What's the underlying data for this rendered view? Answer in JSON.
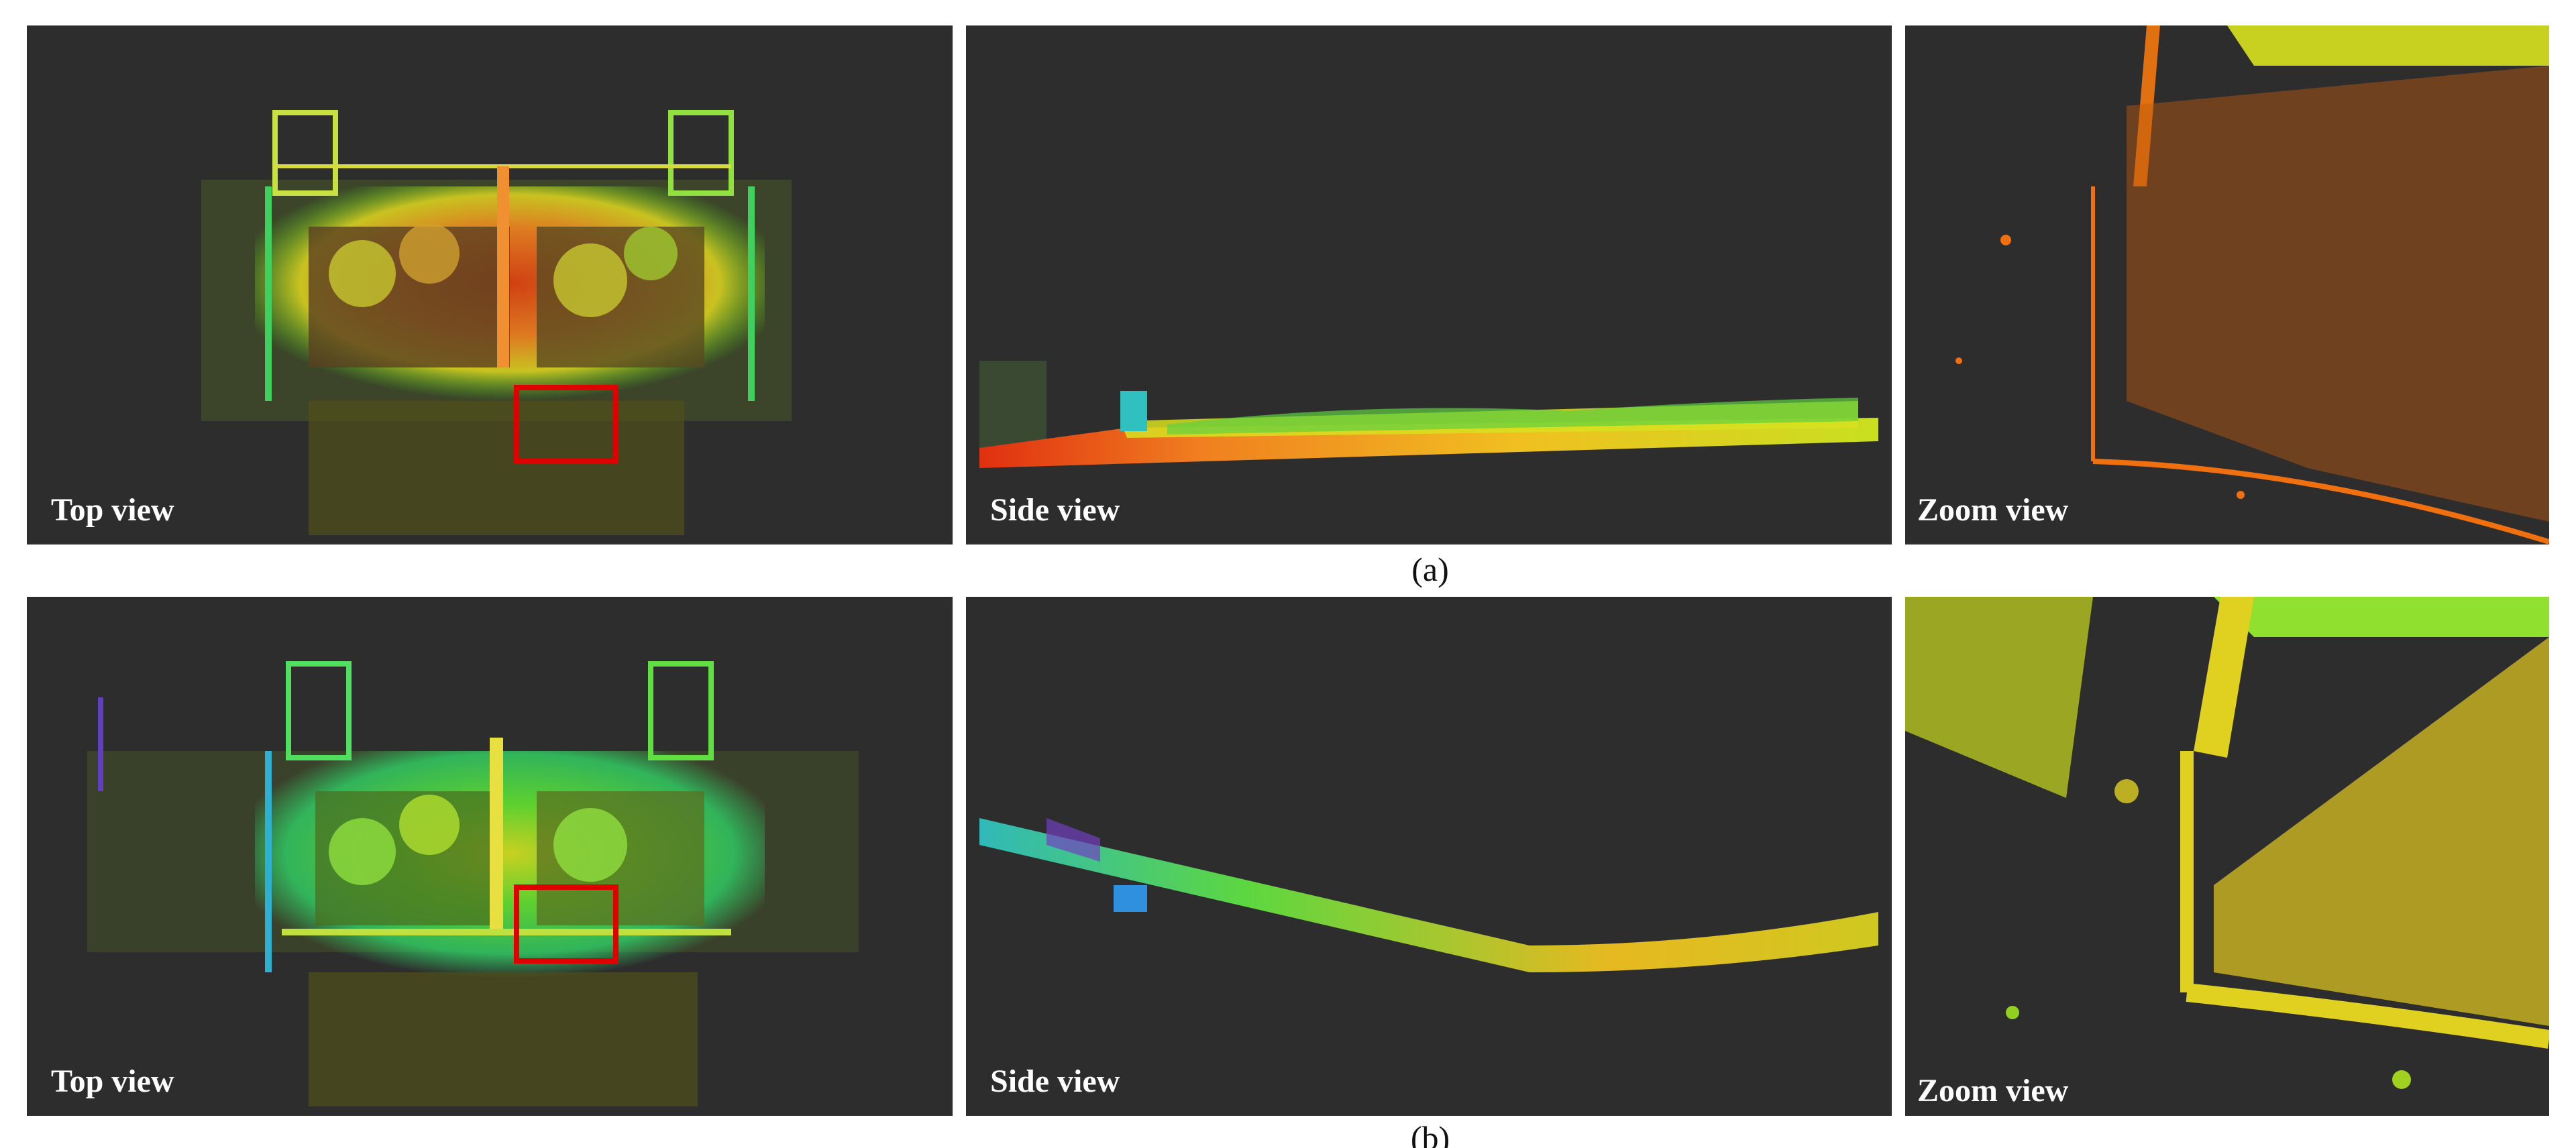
{
  "rows": [
    {
      "caption": "(a)",
      "panels": {
        "top": "Top view",
        "side": "Side view",
        "zoom": "Zoom view"
      }
    },
    {
      "caption": "(b)",
      "panels": {
        "top": "Top view",
        "side": "Side view",
        "zoom": "Zoom view"
      }
    }
  ],
  "colors": {
    "panel_bg": "#2d2d2d",
    "highlight_box": "#e00000",
    "row_a_dominant": "#e85a10",
    "row_b_dominant": "#40e820"
  }
}
